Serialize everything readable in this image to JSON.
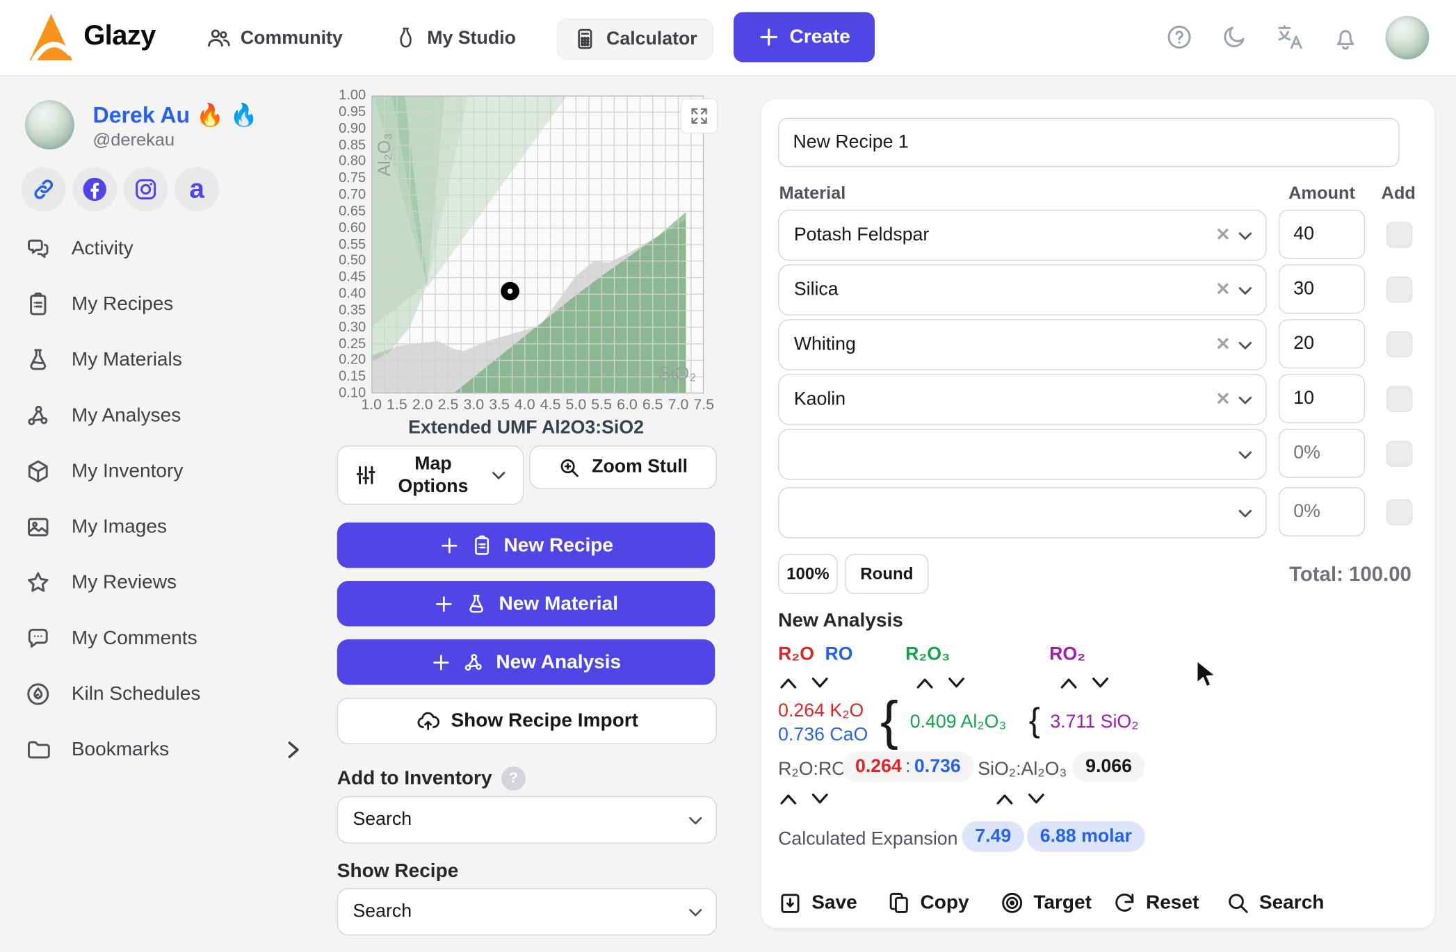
{
  "navbar": {
    "brand": "Glazy",
    "items": [
      {
        "label": "Community"
      },
      {
        "label": "My Studio"
      },
      {
        "label": "Calculator"
      }
    ],
    "create_label": "Create",
    "accent": "#4f46e5"
  },
  "profile": {
    "name": "Derek Au",
    "flame1": "🔥",
    "flame2": "🔥",
    "handle": "@derekau",
    "social_icons": [
      "link-icon",
      "facebook-icon",
      "instagram-icon",
      "a-icon"
    ]
  },
  "sidebar": {
    "items": [
      {
        "label": "Activity",
        "icon": "chat-bubbles-icon"
      },
      {
        "label": "My Recipes",
        "icon": "clipboard-icon"
      },
      {
        "label": "My Materials",
        "icon": "flask-icon"
      },
      {
        "label": "My Analyses",
        "icon": "molecule-icon"
      },
      {
        "label": "My Inventory",
        "icon": "cube-icon"
      },
      {
        "label": "My Images",
        "icon": "image-icon"
      },
      {
        "label": "My Reviews",
        "icon": "star-icon"
      },
      {
        "label": "My Comments",
        "icon": "comment-icon"
      },
      {
        "label": "Kiln Schedules",
        "icon": "kiln-flame-icon"
      },
      {
        "label": "Bookmarks",
        "icon": "folder-icon"
      }
    ]
  },
  "panel": {
    "map_options": "Map Options",
    "zoom_stull": "Zoom Stull",
    "new_recipe": "New Recipe",
    "new_material": "New Material",
    "new_analysis": "New Analysis",
    "show_import": "Show Recipe Import",
    "add_inventory": "Add to Inventory",
    "show_recipe": "Show Recipe",
    "search_placeholder": "Search"
  },
  "chart_data": {
    "type": "scatter",
    "title": "Extended UMF Al2O3:SiO2",
    "xlabel": "SiO₂",
    "ylabel": "Al₂O₃",
    "xlim": [
      1.0,
      7.5
    ],
    "ylim": [
      0.1,
      1.0
    ],
    "x_tick_step": 0.5,
    "y_tick_step": 0.05,
    "grid_x_step": 0.25,
    "grid_y_step": 0.05,
    "grid": true,
    "points": [
      {
        "x": 3.711,
        "y": 0.409
      }
    ],
    "region_green": "#4e9e58",
    "region_gray": "#b5b5b5",
    "regions": [
      {
        "name": "gray-underfired",
        "fill": "#b5b5b5",
        "opacity": 0.5,
        "points": [
          [
            1.0,
            0.1
          ],
          [
            1.0,
            0.215
          ],
          [
            1.55,
            0.245
          ],
          [
            2.3,
            0.258
          ],
          [
            2.6,
            0.235
          ],
          [
            2.8,
            0.228
          ],
          [
            3.3,
            0.26
          ],
          [
            4.3,
            0.305
          ],
          [
            5.0,
            0.455
          ],
          [
            5.35,
            0.5
          ],
          [
            5.65,
            0.495
          ],
          [
            6.1,
            0.53
          ],
          [
            7.15,
            0.625
          ],
          [
            7.15,
            0.1
          ]
        ]
      },
      {
        "name": "green-bottom-right",
        "fill": "#4e9e58",
        "opacity": 0.55,
        "points": [
          [
            2.6,
            0.1
          ],
          [
            4.9,
            0.385
          ],
          [
            5.5,
            0.455
          ],
          [
            6.6,
            0.575
          ],
          [
            7.15,
            0.648
          ],
          [
            7.15,
            0.1
          ]
        ]
      },
      {
        "name": "green-matte-wide",
        "fill": "#4e9e58",
        "opacity": 0.16,
        "points": [
          [
            1.4,
            1.0
          ],
          [
            4.83,
            1.0
          ],
          [
            2.09,
            0.42
          ]
        ]
      },
      {
        "name": "green-matte-mid",
        "fill": "#4e9e58",
        "opacity": 0.1,
        "points": [
          [
            1.05,
            1.0
          ],
          [
            2.89,
            1.0
          ],
          [
            2.09,
            0.43
          ]
        ]
      },
      {
        "name": "green-matte-narrow",
        "fill": "#4e9e58",
        "opacity": 0.12,
        "points": [
          [
            1.0,
            0.3
          ],
          [
            1.0,
            1.0
          ],
          [
            2.43,
            1.0
          ],
          [
            2.09,
            0.43
          ]
        ]
      },
      {
        "name": "green-left-band",
        "fill": "#4e9e58",
        "opacity": 0.22,
        "points": [
          [
            1.0,
            0.195
          ],
          [
            1.0,
            1.0
          ],
          [
            1.65,
            1.0
          ],
          [
            2.09,
            0.43
          ],
          [
            1.75,
            0.3
          ],
          [
            1.35,
            0.225
          ]
        ]
      }
    ]
  },
  "recipe": {
    "name": "New Recipe 1",
    "col_material": "Material",
    "col_amount": "Amount",
    "col_add": "Add",
    "rows": [
      {
        "material": "Potash Feldspar",
        "amount": "40"
      },
      {
        "material": "Silica",
        "amount": "30"
      },
      {
        "material": "Whiting",
        "amount": "20"
      },
      {
        "material": "Kaolin",
        "amount": "10"
      },
      {
        "material": "",
        "amount": "",
        "placeholder": "0%"
      },
      {
        "material": "",
        "amount": "",
        "placeholder": "0%"
      }
    ],
    "pct_button": "100%",
    "round_button": "Round",
    "total_label": "Total: 100.00"
  },
  "analysis": {
    "title": "New Analysis",
    "h_r2o": "R₂O",
    "h_ro": "RO",
    "h_r2o3": "R₂O₃",
    "h_ro2": "RO₂",
    "val_k2o": "0.264 K₂O",
    "val_cao": "0.736 CaO",
    "val_al2o3": "0.409 Al₂O₃",
    "val_sio2": "3.711 SiO₂",
    "brace": "{",
    "ratio_label": "R₂O:RO",
    "ratio_left": "0.264",
    "ratio_sep": ":",
    "ratio_right": "0.736",
    "si_al_label": "SiO₂:Al₂O₃",
    "si_al_value": "9.066",
    "expansion_label": "Calculated Expansion",
    "expansion_value": "7.49",
    "expansion_molar": "6.88 molar",
    "colors": {
      "r2o": "#dc2626",
      "ro": "#2563eb",
      "r2o3": "#16a34a",
      "ro2": "#a21caf"
    }
  },
  "toolbar": {
    "save": "Save",
    "copy": "Copy",
    "target": "Target",
    "reset": "Reset",
    "search": "Search"
  }
}
